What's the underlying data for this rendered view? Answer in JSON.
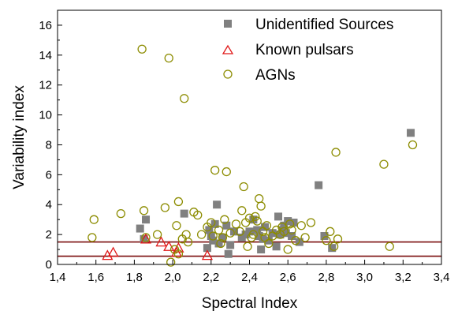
{
  "chart_data": {
    "type": "scatter",
    "title": "",
    "xlabel": "Spectral Index",
    "ylabel": "Variability index",
    "xlim": [
      1.4,
      3.4
    ],
    "ylim": [
      0,
      17
    ],
    "x_ticks": [
      "1,4",
      "1,6",
      "1,8",
      "2,0",
      "2,2",
      "2,4",
      "2,6",
      "2,8",
      "3,0",
      "3,2",
      "3,4"
    ],
    "y_ticks": [
      "0",
      "2",
      "4",
      "6",
      "8",
      "10",
      "12",
      "14",
      "16"
    ],
    "grid": false,
    "legend_position": "top-right",
    "reference_lines": [
      {
        "y": 1.5,
        "color": "#7a0e0e"
      },
      {
        "y": 0.55,
        "color": "#7a0e0e"
      }
    ],
    "series": [
      {
        "name": "Unidentified Sources",
        "marker": "filled-square",
        "color": "#808080",
        "points": [
          [
            1.83,
            2.4
          ],
          [
            1.85,
            1.7
          ],
          [
            1.86,
            3.0
          ],
          [
            2.06,
            3.4
          ],
          [
            2.18,
            1.1
          ],
          [
            2.19,
            2.3
          ],
          [
            2.2,
            1.9
          ],
          [
            2.21,
            1.6
          ],
          [
            2.22,
            2.7
          ],
          [
            2.23,
            4.0
          ],
          [
            2.24,
            1.4
          ],
          [
            2.26,
            1.8
          ],
          [
            2.28,
            2.6
          ],
          [
            2.29,
            0.7
          ],
          [
            2.3,
            1.3
          ],
          [
            2.32,
            2.2
          ],
          [
            2.36,
            1.8
          ],
          [
            2.38,
            2.0
          ],
          [
            2.4,
            2.2
          ],
          [
            2.42,
            3.0
          ],
          [
            2.44,
            2.3
          ],
          [
            2.45,
            1.9
          ],
          [
            2.46,
            1.0
          ],
          [
            2.47,
            1.7
          ],
          [
            2.48,
            2.5
          ],
          [
            2.5,
            1.6
          ],
          [
            2.52,
            2.1
          ],
          [
            2.54,
            1.2
          ],
          [
            2.55,
            3.2
          ],
          [
            2.56,
            2.0
          ],
          [
            2.57,
            2.3
          ],
          [
            2.58,
            2.6
          ],
          [
            2.59,
            2.1
          ],
          [
            2.6,
            2.9
          ],
          [
            2.62,
            1.9
          ],
          [
            2.63,
            2.8
          ],
          [
            2.66,
            1.5
          ],
          [
            2.76,
            5.3
          ],
          [
            2.79,
            1.9
          ],
          [
            2.83,
            1.1
          ],
          [
            3.24,
            8.8
          ]
        ]
      },
      {
        "name": "Known pulsars",
        "marker": "open-triangle",
        "color": "#e01818",
        "points": [
          [
            1.66,
            0.6
          ],
          [
            1.69,
            0.8
          ],
          [
            1.86,
            1.7
          ],
          [
            1.94,
            1.5
          ],
          [
            1.98,
            1.2
          ],
          [
            2.02,
            0.8
          ],
          [
            2.03,
            1.1
          ],
          [
            2.18,
            0.6
          ]
        ]
      },
      {
        "name": "AGNs",
        "marker": "open-circle",
        "color": "#8c8c00",
        "points": [
          [
            1.58,
            1.8
          ],
          [
            1.59,
            3.0
          ],
          [
            1.73,
            3.4
          ],
          [
            1.84,
            14.4
          ],
          [
            1.85,
            3.6
          ],
          [
            1.86,
            1.8
          ],
          [
            1.92,
            2.0
          ],
          [
            1.96,
            3.8
          ],
          [
            1.98,
            13.8
          ],
          [
            1.99,
            0.15
          ],
          [
            2.01,
            1.0
          ],
          [
            2.02,
            2.6
          ],
          [
            2.03,
            0.7
          ],
          [
            2.03,
            4.2
          ],
          [
            2.05,
            1.7
          ],
          [
            2.06,
            11.1
          ],
          [
            2.07,
            2.0
          ],
          [
            2.08,
            1.5
          ],
          [
            2.11,
            3.5
          ],
          [
            2.13,
            3.3
          ],
          [
            2.15,
            2.0
          ],
          [
            2.18,
            2.5
          ],
          [
            2.2,
            2.8
          ],
          [
            2.21,
            1.9
          ],
          [
            2.22,
            6.3
          ],
          [
            2.24,
            2.3
          ],
          [
            2.25,
            1.4
          ],
          [
            2.26,
            1.8
          ],
          [
            2.27,
            3.0
          ],
          [
            2.28,
            6.2
          ],
          [
            2.3,
            2.1
          ],
          [
            2.33,
            2.7
          ],
          [
            2.35,
            2.2
          ],
          [
            2.36,
            3.6
          ],
          [
            2.37,
            5.2
          ],
          [
            2.38,
            2.8
          ],
          [
            2.39,
            1.2
          ],
          [
            2.4,
            3.1
          ],
          [
            2.41,
            1.8
          ],
          [
            2.42,
            2.0
          ],
          [
            2.43,
            3.2
          ],
          [
            2.44,
            2.9
          ],
          [
            2.45,
            4.4
          ],
          [
            2.46,
            3.9
          ],
          [
            2.47,
            2.2
          ],
          [
            2.48,
            1.8
          ],
          [
            2.49,
            2.6
          ],
          [
            2.5,
            1.4
          ],
          [
            2.52,
            1.9
          ],
          [
            2.54,
            2.3
          ],
          [
            2.56,
            2.0
          ],
          [
            2.57,
            2.5
          ],
          [
            2.58,
            2.2
          ],
          [
            2.6,
            1.0
          ],
          [
            2.61,
            2.7
          ],
          [
            2.62,
            2.3
          ],
          [
            2.64,
            1.6
          ],
          [
            2.67,
            2.6
          ],
          [
            2.69,
            1.8
          ],
          [
            2.72,
            2.8
          ],
          [
            2.8,
            1.6
          ],
          [
            2.82,
            2.2
          ],
          [
            2.84,
            1.2
          ],
          [
            2.85,
            7.5
          ],
          [
            2.86,
            1.7
          ],
          [
            3.1,
            6.7
          ],
          [
            3.13,
            1.2
          ],
          [
            3.25,
            8.0
          ]
        ]
      }
    ]
  }
}
